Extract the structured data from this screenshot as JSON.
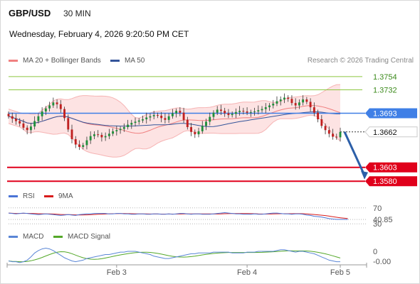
{
  "header": {
    "pair": "GBP/USD",
    "timeframe": "30 MIN",
    "datetime": "Wednesday, February 4, 2026 9:20:50 PM CET",
    "credit": "Research © 2026 Trading Central"
  },
  "colors": {
    "bollinger": "#f08080",
    "ma50": "#34559a",
    "bull": "#1f8f3a",
    "bear": "#c02020",
    "resistance": "#8dc63f",
    "pivot": "#3f7fe6",
    "support": "#e0001b",
    "rsi": "#4a74d6",
    "rsi_ma": "#d81b1b",
    "macd": "#5a86d6",
    "macd_signal": "#54a829",
    "arrow": "#2c5fa8"
  },
  "chart_data": [
    {
      "type": "candlestick",
      "name": "Price",
      "x_ticks": [
        "Feb 3",
        "Feb 4",
        "Feb 5"
      ],
      "ylim": [
        1.3572,
        1.3768
      ],
      "legend": [
        {
          "label": "MA 20 + Bollinger Bands",
          "color_key": "bollinger"
        },
        {
          "label": "MA 50",
          "color_key": "ma50"
        }
      ],
      "levels": [
        {
          "label": "1.3754",
          "value": 1.3754,
          "kind": "resistance"
        },
        {
          "label": "1.3732",
          "value": 1.3732,
          "kind": "resistance"
        },
        {
          "label": "1.3693",
          "value": 1.3693,
          "kind": "pivot"
        },
        {
          "label": "1.3662",
          "value": 1.3662,
          "kind": "last"
        },
        {
          "label": "1.3603",
          "value": 1.3603,
          "kind": "support"
        },
        {
          "label": "1.3580",
          "value": 1.358,
          "kind": "support"
        }
      ],
      "close_series": [
        1.3688,
        1.3684,
        1.368,
        1.3676,
        1.3669,
        1.3665,
        1.3671,
        1.368,
        1.3688,
        1.3696,
        1.3701,
        1.3706,
        1.3711,
        1.3708,
        1.37,
        1.3685,
        1.3666,
        1.365,
        1.3641,
        1.3637,
        1.364,
        1.3648,
        1.3655,
        1.3658,
        1.3657,
        1.3653,
        1.3655,
        1.3659,
        1.3663,
        1.3665,
        1.3667,
        1.367,
        1.3674,
        1.3677,
        1.3679,
        1.3681,
        1.3683,
        1.3686,
        1.3688,
        1.369,
        1.3689,
        1.3685,
        1.3682,
        1.3688,
        1.3693,
        1.3697,
        1.3694,
        1.3682,
        1.367,
        1.3662,
        1.3658,
        1.3663,
        1.3672,
        1.3679,
        1.3687,
        1.3694,
        1.3699,
        1.3697,
        1.3693,
        1.369,
        1.3692,
        1.3695,
        1.3697,
        1.3696,
        1.3694,
        1.3695,
        1.3696,
        1.3698,
        1.37,
        1.3703,
        1.3706,
        1.3709,
        1.3713,
        1.3716,
        1.3719,
        1.3717,
        1.371,
        1.3706,
        1.3711,
        1.3716,
        1.3712,
        1.3703,
        1.3694,
        1.3683,
        1.3672,
        1.3665,
        1.3659,
        1.3654,
        1.3653,
        1.3662
      ],
      "bollinger": {
        "middle": "ma20",
        "upper": "ma20 + band",
        "lower": "ma20 - band"
      }
    },
    {
      "type": "line",
      "name": "RSI",
      "legend": [
        {
          "label": "RSI",
          "color_key": "rsi"
        },
        {
          "label": "9MA",
          "color_key": "rsi_ma"
        }
      ],
      "y_labels": [
        "70",
        "40.85",
        "30"
      ],
      "last_value": 40.85,
      "ylim": [
        25,
        75
      ],
      "levels": [
        70,
        30
      ],
      "rsi_series": [
        57,
        56,
        55,
        56,
        57,
        56,
        55,
        54,
        53,
        54,
        55,
        54,
        53,
        52,
        51,
        52,
        53,
        52,
        51,
        53,
        54,
        55,
        55,
        56,
        56,
        56,
        56,
        55,
        55,
        56,
        56,
        55,
        55,
        54,
        54,
        55,
        55,
        54,
        54,
        55,
        55,
        54,
        54,
        55,
        54,
        55,
        56,
        56,
        55,
        54,
        55,
        55,
        54,
        54,
        54,
        55,
        56,
        57,
        58,
        57,
        56,
        55,
        55,
        54,
        54,
        54,
        55,
        54,
        54,
        55,
        56,
        57,
        57,
        56,
        55,
        55,
        54,
        55,
        55,
        54,
        52,
        51,
        49,
        48,
        47,
        45,
        43,
        42,
        41,
        41,
        41,
        40.85
      ]
    },
    {
      "type": "line",
      "name": "MACD",
      "legend": [
        {
          "label": "MACD",
          "color_key": "macd"
        },
        {
          "label": "MACD Signal",
          "color_key": "macd_signal"
        }
      ],
      "y_labels": [
        "0",
        "-0.00"
      ],
      "last_value": -0.0,
      "ylim": [
        -0.0012,
        0.0012
      ],
      "macd_series": [
        -0.0008,
        -0.0009,
        -0.0009,
        -0.001,
        -0.0009,
        -0.0007,
        -0.0003,
        0.0002,
        0.0005,
        0.0007,
        0.0008,
        0.0007,
        0.0005,
        0.0002,
        -0.0001,
        -0.0004,
        -0.0006,
        -0.0008,
        -0.0009,
        -0.0008,
        -0.0007,
        -0.0005,
        -0.0004,
        -0.0003,
        -0.0002,
        -0.0001,
        0.0,
        0.0,
        0.0001,
        0.0002,
        0.0003,
        0.0003,
        0.0004,
        0.0004,
        0.0004,
        0.0003,
        0.0002,
        0.0001,
        0.0,
        -0.0002,
        -0.0003,
        -0.0004,
        -0.0005,
        -0.0005,
        -0.0004,
        -0.0003,
        -0.0002,
        -0.0001,
        0.0,
        0.0001,
        0.0001,
        0.0002,
        0.0002,
        0.0002,
        0.0002,
        0.0003,
        0.0003,
        0.0003,
        0.0003,
        0.0003,
        0.0002,
        0.0002,
        0.0002,
        0.0002,
        0.0003,
        0.0003,
        0.0003,
        0.0004,
        0.0004,
        0.0004,
        0.0004,
        0.0004,
        0.0005,
        0.0006,
        0.0006,
        0.0005,
        0.0004,
        0.0003,
        0.0004,
        0.0004,
        0.0003,
        0.0002,
        0.0001,
        -0.0001,
        -0.0003,
        -0.0005,
        -0.0007,
        -0.0008,
        -0.0009,
        -0.0009
      ]
    }
  ]
}
